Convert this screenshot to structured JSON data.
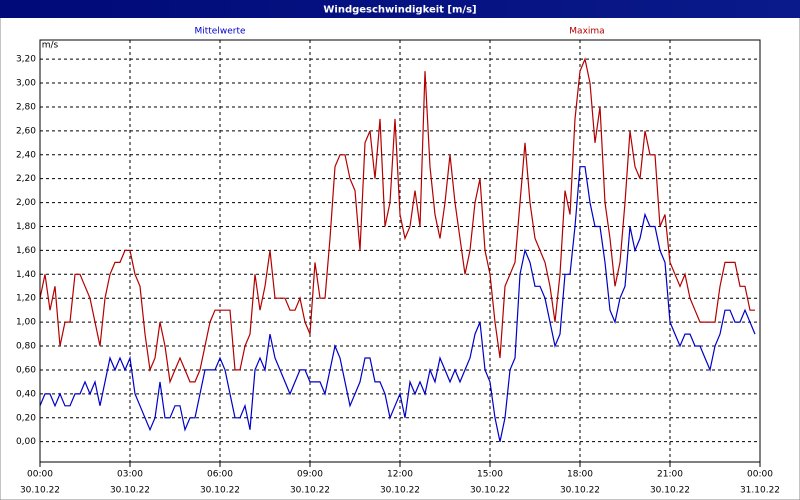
{
  "chart_data": {
    "type": "line",
    "title": "Windgeschwindigkeit [m/s]",
    "y_label": "m/s",
    "x": [
      0,
      10,
      20,
      30,
      40,
      50,
      60,
      70,
      80,
      90,
      100,
      110,
      120,
      130,
      140,
      150,
      160,
      170,
      180,
      190,
      200,
      210,
      220,
      230,
      240,
      250,
      260,
      270,
      280,
      290,
      300,
      310,
      320,
      330,
      340,
      350,
      360,
      370,
      380,
      390,
      400,
      410,
      420,
      430,
      440,
      450,
      460,
      470,
      480,
      490,
      500,
      510,
      520,
      530,
      540,
      550,
      560,
      570,
      580,
      590,
      600,
      610,
      620,
      630,
      640,
      650,
      660,
      670,
      680,
      690,
      700,
      710,
      720,
      730,
      740,
      750,
      760,
      770,
      780,
      790,
      800,
      810,
      820,
      830,
      840,
      850,
      860,
      870,
      880,
      890,
      900,
      910,
      920,
      930,
      940,
      950,
      960,
      970,
      980,
      990,
      1000,
      1010,
      1020,
      1030,
      1040,
      1050,
      1060,
      1070,
      1080,
      1090,
      1100,
      1110,
      1120,
      1130,
      1140,
      1150,
      1160,
      1170,
      1180,
      1190,
      1200,
      1210,
      1220,
      1230,
      1240,
      1250,
      1260,
      1270,
      1280,
      1290,
      1300,
      1310,
      1320,
      1330,
      1340,
      1350,
      1360,
      1370,
      1380,
      1390,
      1400,
      1410,
      1420,
      1430
    ],
    "series": [
      {
        "name": "Mittelwerte",
        "color": "#0000c8",
        "values": [
          0.3,
          0.4,
          0.4,
          0.3,
          0.4,
          0.3,
          0.3,
          0.4,
          0.4,
          0.5,
          0.4,
          0.5,
          0.3,
          0.5,
          0.7,
          0.6,
          0.7,
          0.6,
          0.7,
          0.4,
          0.3,
          0.2,
          0.1,
          0.2,
          0.5,
          0.2,
          0.2,
          0.3,
          0.3,
          0.1,
          0.2,
          0.2,
          0.4,
          0.6,
          0.6,
          0.6,
          0.7,
          0.6,
          0.4,
          0.2,
          0.2,
          0.3,
          0.1,
          0.6,
          0.7,
          0.6,
          0.9,
          0.7,
          0.6,
          0.5,
          0.4,
          0.5,
          0.6,
          0.6,
          0.5,
          0.5,
          0.5,
          0.4,
          0.6,
          0.8,
          0.7,
          0.5,
          0.3,
          0.4,
          0.5,
          0.7,
          0.7,
          0.5,
          0.5,
          0.4,
          0.2,
          0.3,
          0.4,
          0.2,
          0.5,
          0.4,
          0.5,
          0.4,
          0.6,
          0.5,
          0.7,
          0.6,
          0.5,
          0.6,
          0.5,
          0.6,
          0.7,
          0.9,
          1.0,
          0.6,
          0.5,
          0.2,
          0.0,
          0.2,
          0.6,
          0.7,
          1.4,
          1.6,
          1.5,
          1.3,
          1.3,
          1.2,
          1.0,
          0.8,
          0.9,
          1.4,
          1.4,
          1.8,
          2.3,
          2.3,
          2.0,
          1.8,
          1.8,
          1.5,
          1.1,
          1.0,
          1.2,
          1.3,
          1.8,
          1.6,
          1.7,
          1.9,
          1.8,
          1.8,
          1.6,
          1.5,
          1.0,
          0.9,
          0.8,
          0.9,
          0.9,
          0.8,
          0.8,
          0.7,
          0.6,
          0.8,
          0.9,
          1.1,
          1.1,
          1.0,
          1.0,
          1.1,
          1.0,
          0.9
        ]
      },
      {
        "name": "Maxima",
        "color": "#b40000",
        "values": [
          1.2,
          1.4,
          1.1,
          1.3,
          0.8,
          1.0,
          1.0,
          1.4,
          1.4,
          1.3,
          1.2,
          1.0,
          0.8,
          1.2,
          1.4,
          1.5,
          1.5,
          1.6,
          1.6,
          1.4,
          1.3,
          0.9,
          0.6,
          0.7,
          1.0,
          0.8,
          0.5,
          0.6,
          0.7,
          0.6,
          0.5,
          0.5,
          0.6,
          0.8,
          1.0,
          1.1,
          1.1,
          1.1,
          1.1,
          0.6,
          0.6,
          0.8,
          0.9,
          1.4,
          1.1,
          1.3,
          1.6,
          1.2,
          1.2,
          1.2,
          1.1,
          1.1,
          1.2,
          1.0,
          0.9,
          1.5,
          1.2,
          1.2,
          1.7,
          2.3,
          2.4,
          2.4,
          2.2,
          2.1,
          1.6,
          2.5,
          2.6,
          2.2,
          2.7,
          1.8,
          2.0,
          2.7,
          1.9,
          1.7,
          1.8,
          2.1,
          1.8,
          3.1,
          2.3,
          1.9,
          1.7,
          2.0,
          2.4,
          2.0,
          1.7,
          1.4,
          1.6,
          2.0,
          2.2,
          1.6,
          1.4,
          1.0,
          0.7,
          1.3,
          1.4,
          1.5,
          2.0,
          2.5,
          2.0,
          1.7,
          1.6,
          1.5,
          1.3,
          1.0,
          1.4,
          2.1,
          1.9,
          2.7,
          3.1,
          3.2,
          3.0,
          2.5,
          2.8,
          2.0,
          1.7,
          1.3,
          1.5,
          2.0,
          2.6,
          2.3,
          2.2,
          2.6,
          2.4,
          2.4,
          1.8,
          1.9,
          1.5,
          1.4,
          1.3,
          1.4,
          1.2,
          1.1,
          1.0,
          1.0,
          1.0,
          1.0,
          1.3,
          1.5,
          1.5,
          1.5,
          1.3,
          1.3,
          1.1,
          1.1
        ]
      }
    ],
    "xlim": [
      0,
      1440
    ],
    "xticks": [
      {
        "value": 0,
        "label": "00:00"
      },
      {
        "value": 180,
        "label": "03:00"
      },
      {
        "value": 360,
        "label": "06:00"
      },
      {
        "value": 540,
        "label": "09:00"
      },
      {
        "value": 720,
        "label": "12:00"
      },
      {
        "value": 900,
        "label": "15:00"
      },
      {
        "value": 1080,
        "label": "18:00"
      },
      {
        "value": 1260,
        "label": "21:00"
      },
      {
        "value": 1440,
        "label": "00:00"
      }
    ],
    "xtick_dates": [
      "30.10.22",
      "30.10.22",
      "30.10.22",
      "30.10.22",
      "30.10.22",
      "30.10.22",
      "30.10.22",
      "30.10.22",
      "31.10.22"
    ],
    "ylim": [
      -0.17,
      3.36
    ],
    "yticks": [
      {
        "value": 0,
        "label": "0,00"
      },
      {
        "value": 0.2,
        "label": "0,20"
      },
      {
        "value": 0.4,
        "label": "0,40"
      },
      {
        "value": 0.6,
        "label": "0,60"
      },
      {
        "value": 0.8,
        "label": "0,80"
      },
      {
        "value": 1.0,
        "label": "1,00"
      },
      {
        "value": 1.2,
        "label": "1,20"
      },
      {
        "value": 1.4,
        "label": "1,40"
      },
      {
        "value": 1.6,
        "label": "1,60"
      },
      {
        "value": 1.8,
        "label": "1,80"
      },
      {
        "value": 2.0,
        "label": "2,00"
      },
      {
        "value": 2.2,
        "label": "2,20"
      },
      {
        "value": 2.4,
        "label": "2,40"
      },
      {
        "value": 2.6,
        "label": "2,60"
      },
      {
        "value": 2.8,
        "label": "2,80"
      },
      {
        "value": 3.0,
        "label": "3,00"
      },
      {
        "value": 3.2,
        "label": "3,20"
      }
    ],
    "grid": true
  }
}
